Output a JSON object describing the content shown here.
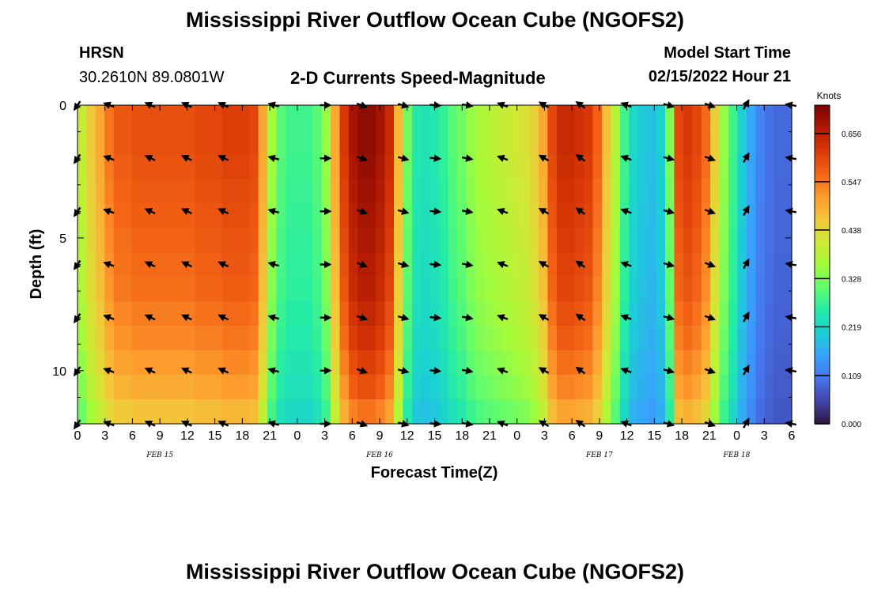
{
  "title": "Mississippi River Outflow Ocean Cube (NGOFS2)",
  "station": {
    "name": "HRSN",
    "coords": "30.2610N  89.0801W"
  },
  "subtitle": "2-D Currents Speed-Magnitude",
  "model_start": {
    "label": "Model Start Time",
    "value": "02/15/2022 Hour 21"
  },
  "bottom_title": "Mississippi River Outflow Ocean Cube (NGOFS2)",
  "chart_data": {
    "type": "heatmap",
    "title": "2-D Currents Speed-Magnitude",
    "xlabel": "Forecast Time(Z)",
    "ylabel": "Depth (ft)",
    "x_range": [
      0,
      78
    ],
    "y_range": [
      0,
      12
    ],
    "x_ticks": [
      0,
      3,
      6,
      9,
      12,
      15,
      18,
      21,
      24,
      27,
      30,
      33,
      36,
      39,
      42,
      45,
      48,
      51,
      54,
      57,
      60,
      63,
      66,
      69,
      72,
      75,
      78
    ],
    "x_tick_labels": [
      "0",
      "3",
      "6",
      "9",
      "12",
      "15",
      "18",
      "21",
      "0",
      "3",
      "6",
      "9",
      "12",
      "15",
      "18",
      "21",
      "0",
      "3",
      "6",
      "9",
      "12",
      "15",
      "18",
      "21",
      "0",
      "3",
      "6"
    ],
    "y_ticks": [
      0,
      5,
      10
    ],
    "y_tick_labels": [
      "0",
      "5",
      "10"
    ],
    "date_labels": [
      {
        "hour": 9,
        "label": "FEB 15"
      },
      {
        "hour": 33,
        "label": "FEB 16"
      },
      {
        "hour": 57,
        "label": "FEB 17"
      },
      {
        "hour": 72,
        "label": "FEB 18"
      }
    ],
    "colorbar": {
      "title": "Knots",
      "min": 0.0,
      "max": 0.72,
      "tick_values": [
        0.0,
        0.109,
        0.219,
        0.328,
        0.438,
        0.547,
        0.656
      ],
      "tick_labels": [
        "0.000",
        "0.109",
        "0.219",
        "0.328",
        "0.438",
        "0.547",
        "0.656"
      ],
      "colors": [
        "#30123b",
        "#4145ab",
        "#4675ed",
        "#39a2fc",
        "#1bcfd4",
        "#24eca6",
        "#61fc6c",
        "#a4fc3b",
        "#d1e834",
        "#f3c63a",
        "#fe9b2d",
        "#f36315",
        "#d93806",
        "#b11901",
        "#7a0403"
      ]
    },
    "speed_profile": {
      "hours": [
        0,
        1,
        2,
        3,
        4,
        5,
        6,
        7,
        8,
        9,
        10,
        11,
        12,
        13,
        14,
        15,
        16,
        17,
        18,
        19,
        20,
        21,
        22,
        23,
        24,
        25,
        26,
        27,
        28,
        29,
        30,
        31,
        32,
        33,
        34,
        35,
        36,
        37,
        38,
        39,
        40,
        41,
        42,
        43,
        44,
        45,
        46,
        47,
        48,
        49,
        50,
        51,
        52,
        53,
        54,
        55,
        56,
        57,
        58,
        59,
        60,
        61,
        62,
        63,
        64,
        65,
        66,
        67,
        68,
        69,
        70,
        71,
        72,
        73,
        74,
        75,
        76,
        77,
        78
      ],
      "surface_speed": [
        0.4,
        0.46,
        0.5,
        0.55,
        0.58,
        0.58,
        0.59,
        0.59,
        0.59,
        0.59,
        0.59,
        0.59,
        0.59,
        0.6,
        0.6,
        0.6,
        0.61,
        0.61,
        0.61,
        0.6,
        0.5,
        0.36,
        0.3,
        0.28,
        0.28,
        0.28,
        0.3,
        0.35,
        0.5,
        0.62,
        0.68,
        0.7,
        0.7,
        0.68,
        0.64,
        0.48,
        0.32,
        0.25,
        0.24,
        0.25,
        0.27,
        0.3,
        0.32,
        0.35,
        0.37,
        0.38,
        0.39,
        0.4,
        0.41,
        0.42,
        0.45,
        0.5,
        0.6,
        0.64,
        0.64,
        0.63,
        0.62,
        0.57,
        0.47,
        0.38,
        0.28,
        0.22,
        0.2,
        0.19,
        0.21,
        0.33,
        0.6,
        0.62,
        0.6,
        0.56,
        0.45,
        0.35,
        0.28,
        0.21,
        0.16,
        0.12,
        0.1,
        0.09,
        0.09
      ],
      "depth_factor": [
        1.0,
        1.0,
        0.99,
        0.98,
        0.97,
        0.96,
        0.95,
        0.94,
        0.92,
        0.9,
        0.87,
        0.84,
        0.79
      ]
    },
    "arrows": {
      "hours": [
        0,
        3.5,
        8,
        12,
        16,
        21.5,
        27,
        31,
        35.5,
        39,
        42.5,
        46.5,
        51,
        55,
        60,
        64.5,
        69,
        73,
        78
      ],
      "depths": [
        0,
        2,
        4,
        6,
        8,
        10,
        12
      ],
      "angles_deg": [
        125,
        200,
        205,
        205,
        205,
        195,
        0,
        20,
        15,
        5,
        10,
        200,
        210,
        215,
        200,
        15,
        20,
        300,
        190
      ]
    }
  }
}
